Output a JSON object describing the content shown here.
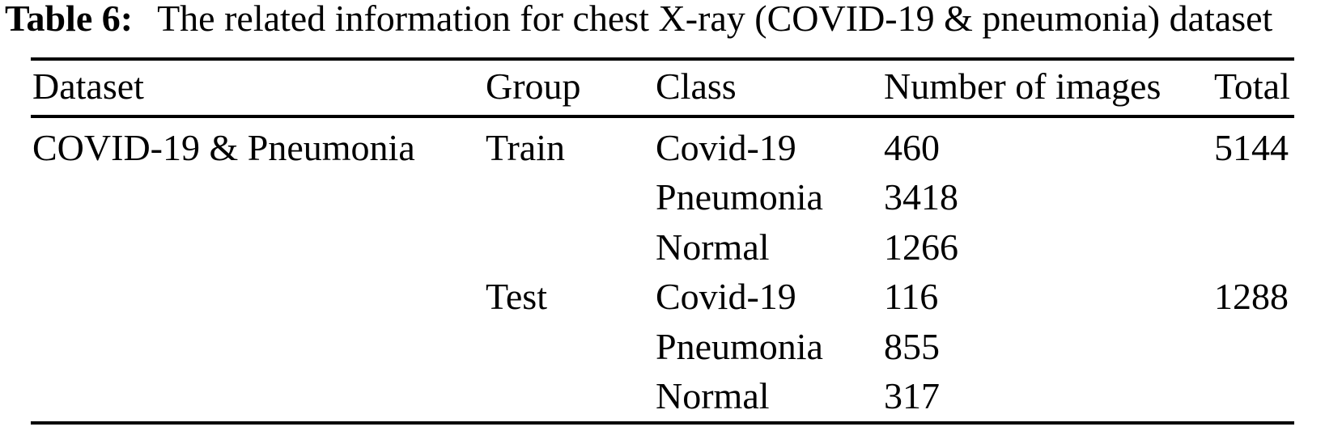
{
  "title": {
    "label": "Table 6:",
    "text": "The related information for chest X-ray (COVID-19 & pneumonia) dataset"
  },
  "table": {
    "headers": {
      "dataset": "Dataset",
      "group": "Group",
      "class": "Class",
      "number_of_images": "Number of images",
      "total": "Total"
    },
    "dataset_name": "COVID-19 & Pneumonia",
    "rows": [
      {
        "group": "Train",
        "class": "Covid-19",
        "number_of_images": "460",
        "total": "5144"
      },
      {
        "group": "",
        "class": "Pneumonia",
        "number_of_images": "3418",
        "total": ""
      },
      {
        "group": "",
        "class": "Normal",
        "number_of_images": "1266",
        "total": ""
      },
      {
        "group": "Test",
        "class": "Covid-19",
        "number_of_images": "116",
        "total": "1288"
      },
      {
        "group": "",
        "class": "Pneumonia",
        "number_of_images": "855",
        "total": ""
      },
      {
        "group": "",
        "class": "Normal",
        "number_of_images": "317",
        "total": ""
      }
    ]
  },
  "colors": {
    "text": "#000000",
    "background": "#ffffff",
    "rule": "#000000"
  }
}
